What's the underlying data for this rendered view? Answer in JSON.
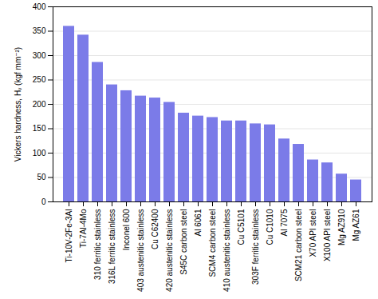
{
  "chart_data": {
    "type": "bar",
    "y_label": "Vickers hardness, Hᵥ (kgf mm⁻²)",
    "categories": [
      "Ti-10V-2Fe-3Al",
      "Ti-7Al-4Mo",
      "310 ferritic stainless",
      "316L ferritic stainless",
      "Inconel 600",
      "403 austenitic stainless",
      "Cu C62400",
      "420 austenitic stainless",
      "S45C carbon steel",
      "Al 6061",
      "SCM4 carbon steel",
      "410 austenitic stainless",
      "Cu C5101",
      "303F ferritic stainless",
      "Cu C1010",
      "Al 7075",
      "SCM21 carbon steel",
      "X70 API steel",
      "X100 API steel",
      "Mg AZ910",
      "Mg AZ61"
    ],
    "values": [
      360,
      342,
      286,
      240,
      228,
      217,
      213,
      204,
      182,
      176,
      173,
      166,
      166,
      160,
      158,
      129,
      118,
      86,
      80,
      57,
      45
    ],
    "color": "#7b7be8",
    "ylim": [
      0,
      400
    ],
    "yticks": [
      0,
      50,
      100,
      150,
      200,
      250,
      300,
      350,
      400
    ],
    "grid": true
  }
}
